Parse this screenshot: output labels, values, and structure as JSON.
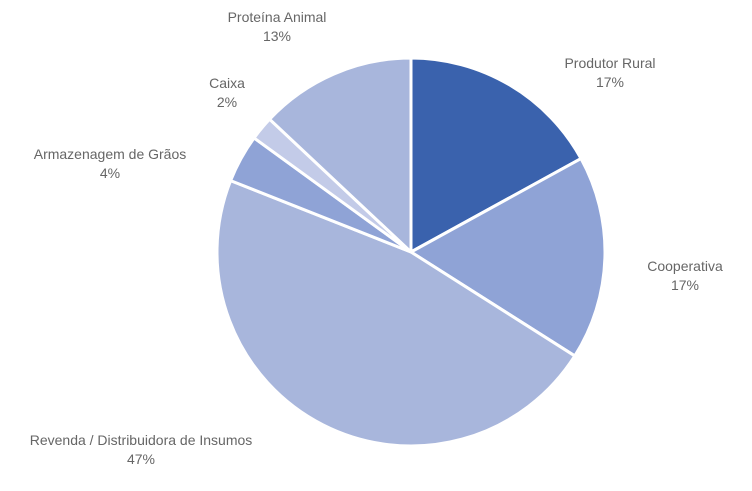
{
  "chart_data": {
    "type": "pie",
    "categories": [
      "Produtor Rural",
      "Cooperativa",
      "Revenda / Distribuidora de Insumos",
      "Armazenagem de Grãos",
      "Caixa",
      "Proteína Animal"
    ],
    "values": [
      17,
      17,
      47,
      4,
      2,
      13
    ],
    "value_labels": [
      "17%",
      "17%",
      "47%",
      "4%",
      "2%",
      "13%"
    ],
    "colors": [
      "#3a62ad",
      "#8fa3d6",
      "#a8b6dc",
      "#8fa3d6",
      "#c3cbe8",
      "#a8b6dc"
    ]
  }
}
